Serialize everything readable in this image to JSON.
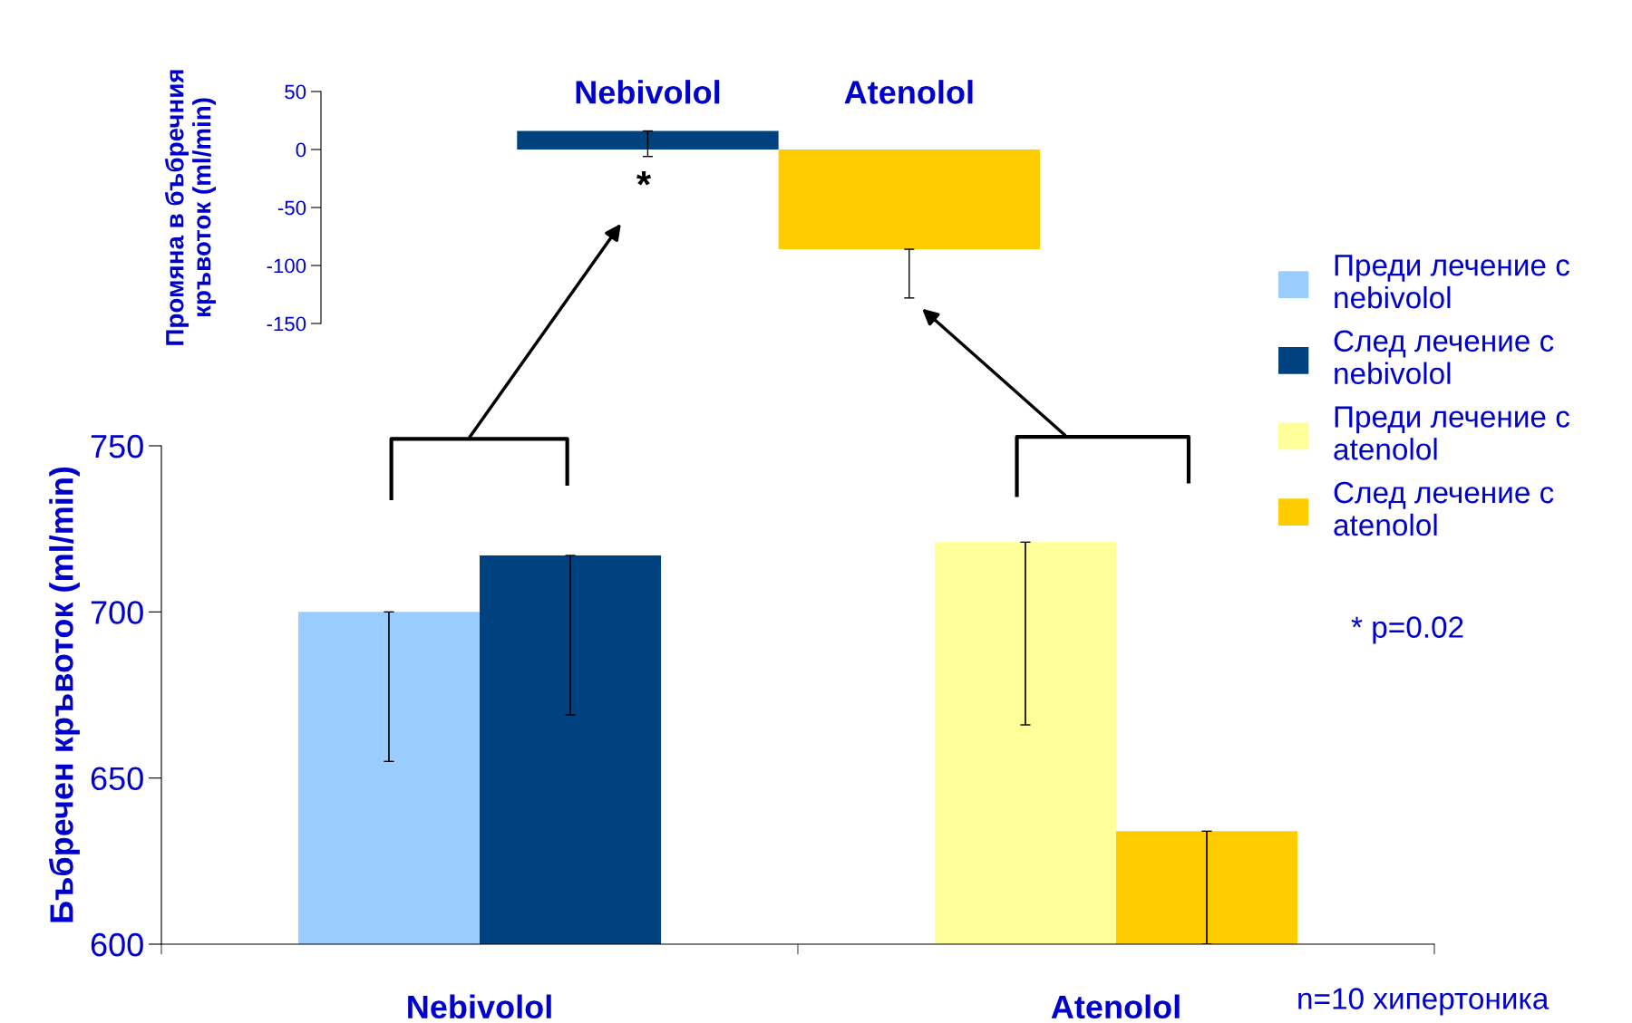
{
  "chart_data": [
    {
      "type": "bar",
      "categories": [
        "Nebivolol",
        "Atenolol"
      ],
      "ylabel": "Бъбречен кръвоток (ml/min)",
      "ylim": [
        600,
        750
      ],
      "yticks": [
        600,
        650,
        700,
        750
      ],
      "grid": false,
      "legend": "right",
      "series": [
        {
          "name": "Преди лечение с\nnebivolol",
          "color": "#99ccff",
          "values": [
            700,
            null
          ],
          "errors": [
            [
              655,
              700
            ],
            null
          ]
        },
        {
          "name": "След лечение с\nnebivolol",
          "color": "#00427f",
          "values": [
            717,
            null
          ],
          "errors": [
            [
              669,
              717
            ],
            null
          ]
        },
        {
          "name": "Преди лечение с\natenolol",
          "color": "#ffff99",
          "values": [
            null,
            721
          ],
          "errors": [
            null,
            [
              666,
              721
            ]
          ]
        },
        {
          "name": "След лечение с\natenolol",
          "color": "#ffcc00",
          "values": [
            null,
            634
          ],
          "errors": [
            null,
            [
              600,
              634
            ]
          ]
        }
      ],
      "annotations": [
        "* p=0.02",
        "n=10 хипертоника"
      ]
    },
    {
      "type": "bar",
      "categories": [
        "Nebivolol",
        "Atenolol"
      ],
      "ylabel": "Промяна в бъбречния\nкръвоток (ml/min)",
      "ylim": [
        -150,
        50
      ],
      "yticks": [
        -150,
        -100,
        -50,
        0,
        50
      ],
      "grid": false,
      "values": [
        16,
        -86
      ],
      "colors": [
        "#00427f",
        "#ffcc00"
      ],
      "errors": [
        [
          -6,
          16
        ],
        [
          -128,
          -86
        ]
      ],
      "annotations": [
        "*"
      ]
    }
  ]
}
